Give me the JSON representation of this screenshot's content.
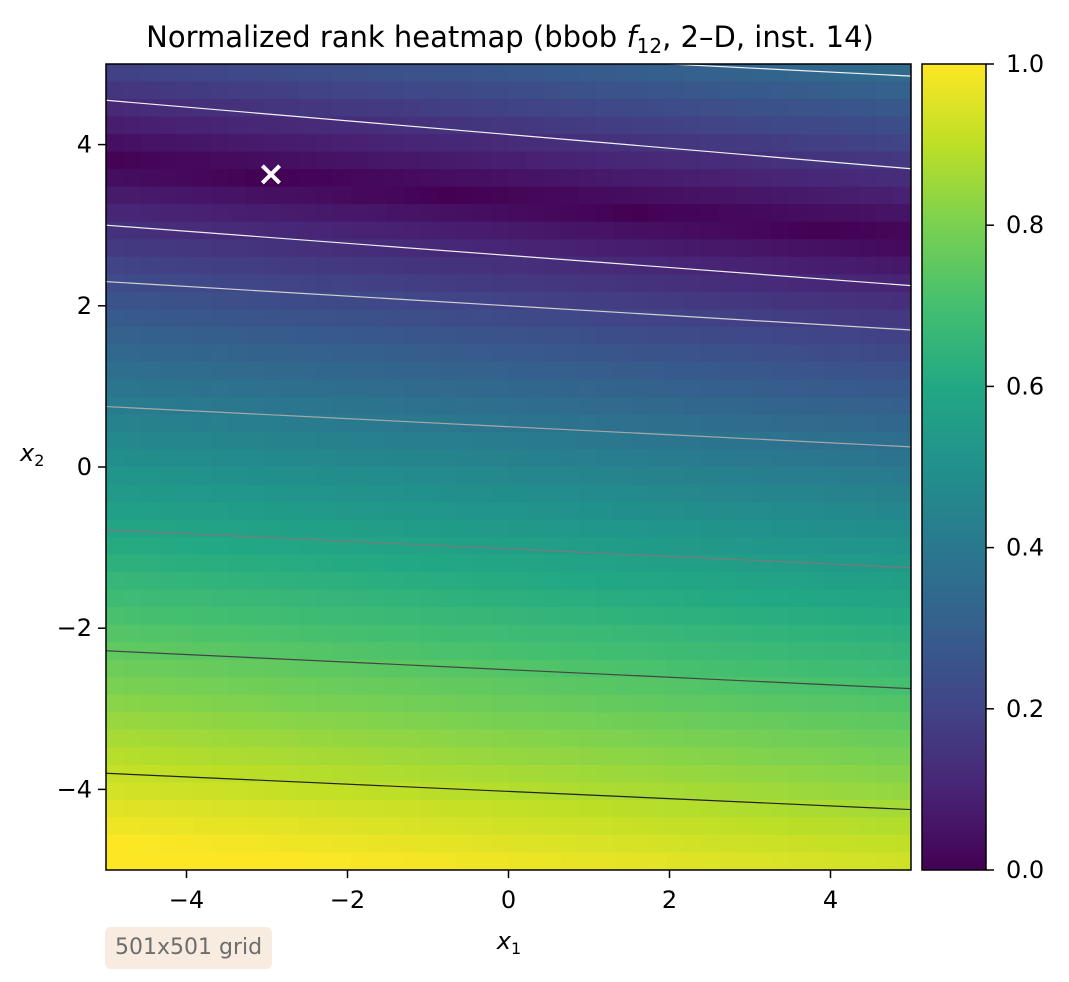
{
  "chart_data": {
    "type": "heatmap",
    "title_parts": {
      "prefix": "Normalized rank heatmap (bbob ",
      "func": "f",
      "func_sub": "12",
      "suffix": ", 2–D, inst. 14)"
    },
    "xlabel": {
      "base": "x",
      "sub": "1"
    },
    "ylabel": {
      "base": "x",
      "sub": "2"
    },
    "xlim": [
      -5,
      5
    ],
    "ylim": [
      -5,
      5
    ],
    "xticks": [
      -4,
      -2,
      0,
      2,
      4
    ],
    "yticks": [
      -4,
      -2,
      0,
      2,
      4
    ],
    "xtick_labels": [
      "−4",
      "−2",
      "0",
      "2",
      "4"
    ],
    "ytick_labels": [
      "−4",
      "−2",
      "0",
      "2",
      "4"
    ],
    "colorbar": {
      "range": [
        0,
        1
      ],
      "ticks": [
        0,
        0.2,
        0.4,
        0.6,
        0.8,
        1.0
      ],
      "tick_labels": [
        "0.0",
        "0.2",
        "0.4",
        "0.6",
        "0.8",
        "1.0"
      ]
    },
    "colormap": "viridis",
    "optimum_marker": {
      "x": -2.95,
      "y": 3.65,
      "symbol": "×"
    },
    "valley_line": {
      "slope": -0.095,
      "intercept": 3.3
    },
    "contours": [
      {
        "level": 0.1,
        "y_at_xmin": 4.55,
        "y_at_xmax": 3.7,
        "color": "#f2f2f2"
      },
      {
        "level": 0.1,
        "y_at_xmin": 3.0,
        "y_at_xmax": 2.25,
        "color": "#eeeeee"
      },
      {
        "level": 0.22,
        "y_at_xmin": 2.3,
        "y_at_xmax": 1.7,
        "color": "#d0d0d0"
      },
      {
        "level": 0.4,
        "y_at_xmin": 0.75,
        "y_at_xmax": 0.25,
        "color": "#a8a8a8"
      },
      {
        "level": 0.55,
        "y_at_xmin": -0.78,
        "y_at_xmax": -1.25,
        "color": "#7a7a7a"
      },
      {
        "level": 0.75,
        "y_at_xmin": -2.28,
        "y_at_xmax": -2.75,
        "color": "#444444"
      },
      {
        "level": 0.9,
        "y_at_xmin": -3.8,
        "y_at_xmax": -4.25,
        "color": "#222222"
      },
      {
        "level": 0.1,
        "y_at_xmin": 5.35,
        "y_at_xmax": 4.85,
        "color": "#f2f2f2"
      }
    ]
  },
  "annotation": {
    "grid_note": "501x501 grid"
  }
}
